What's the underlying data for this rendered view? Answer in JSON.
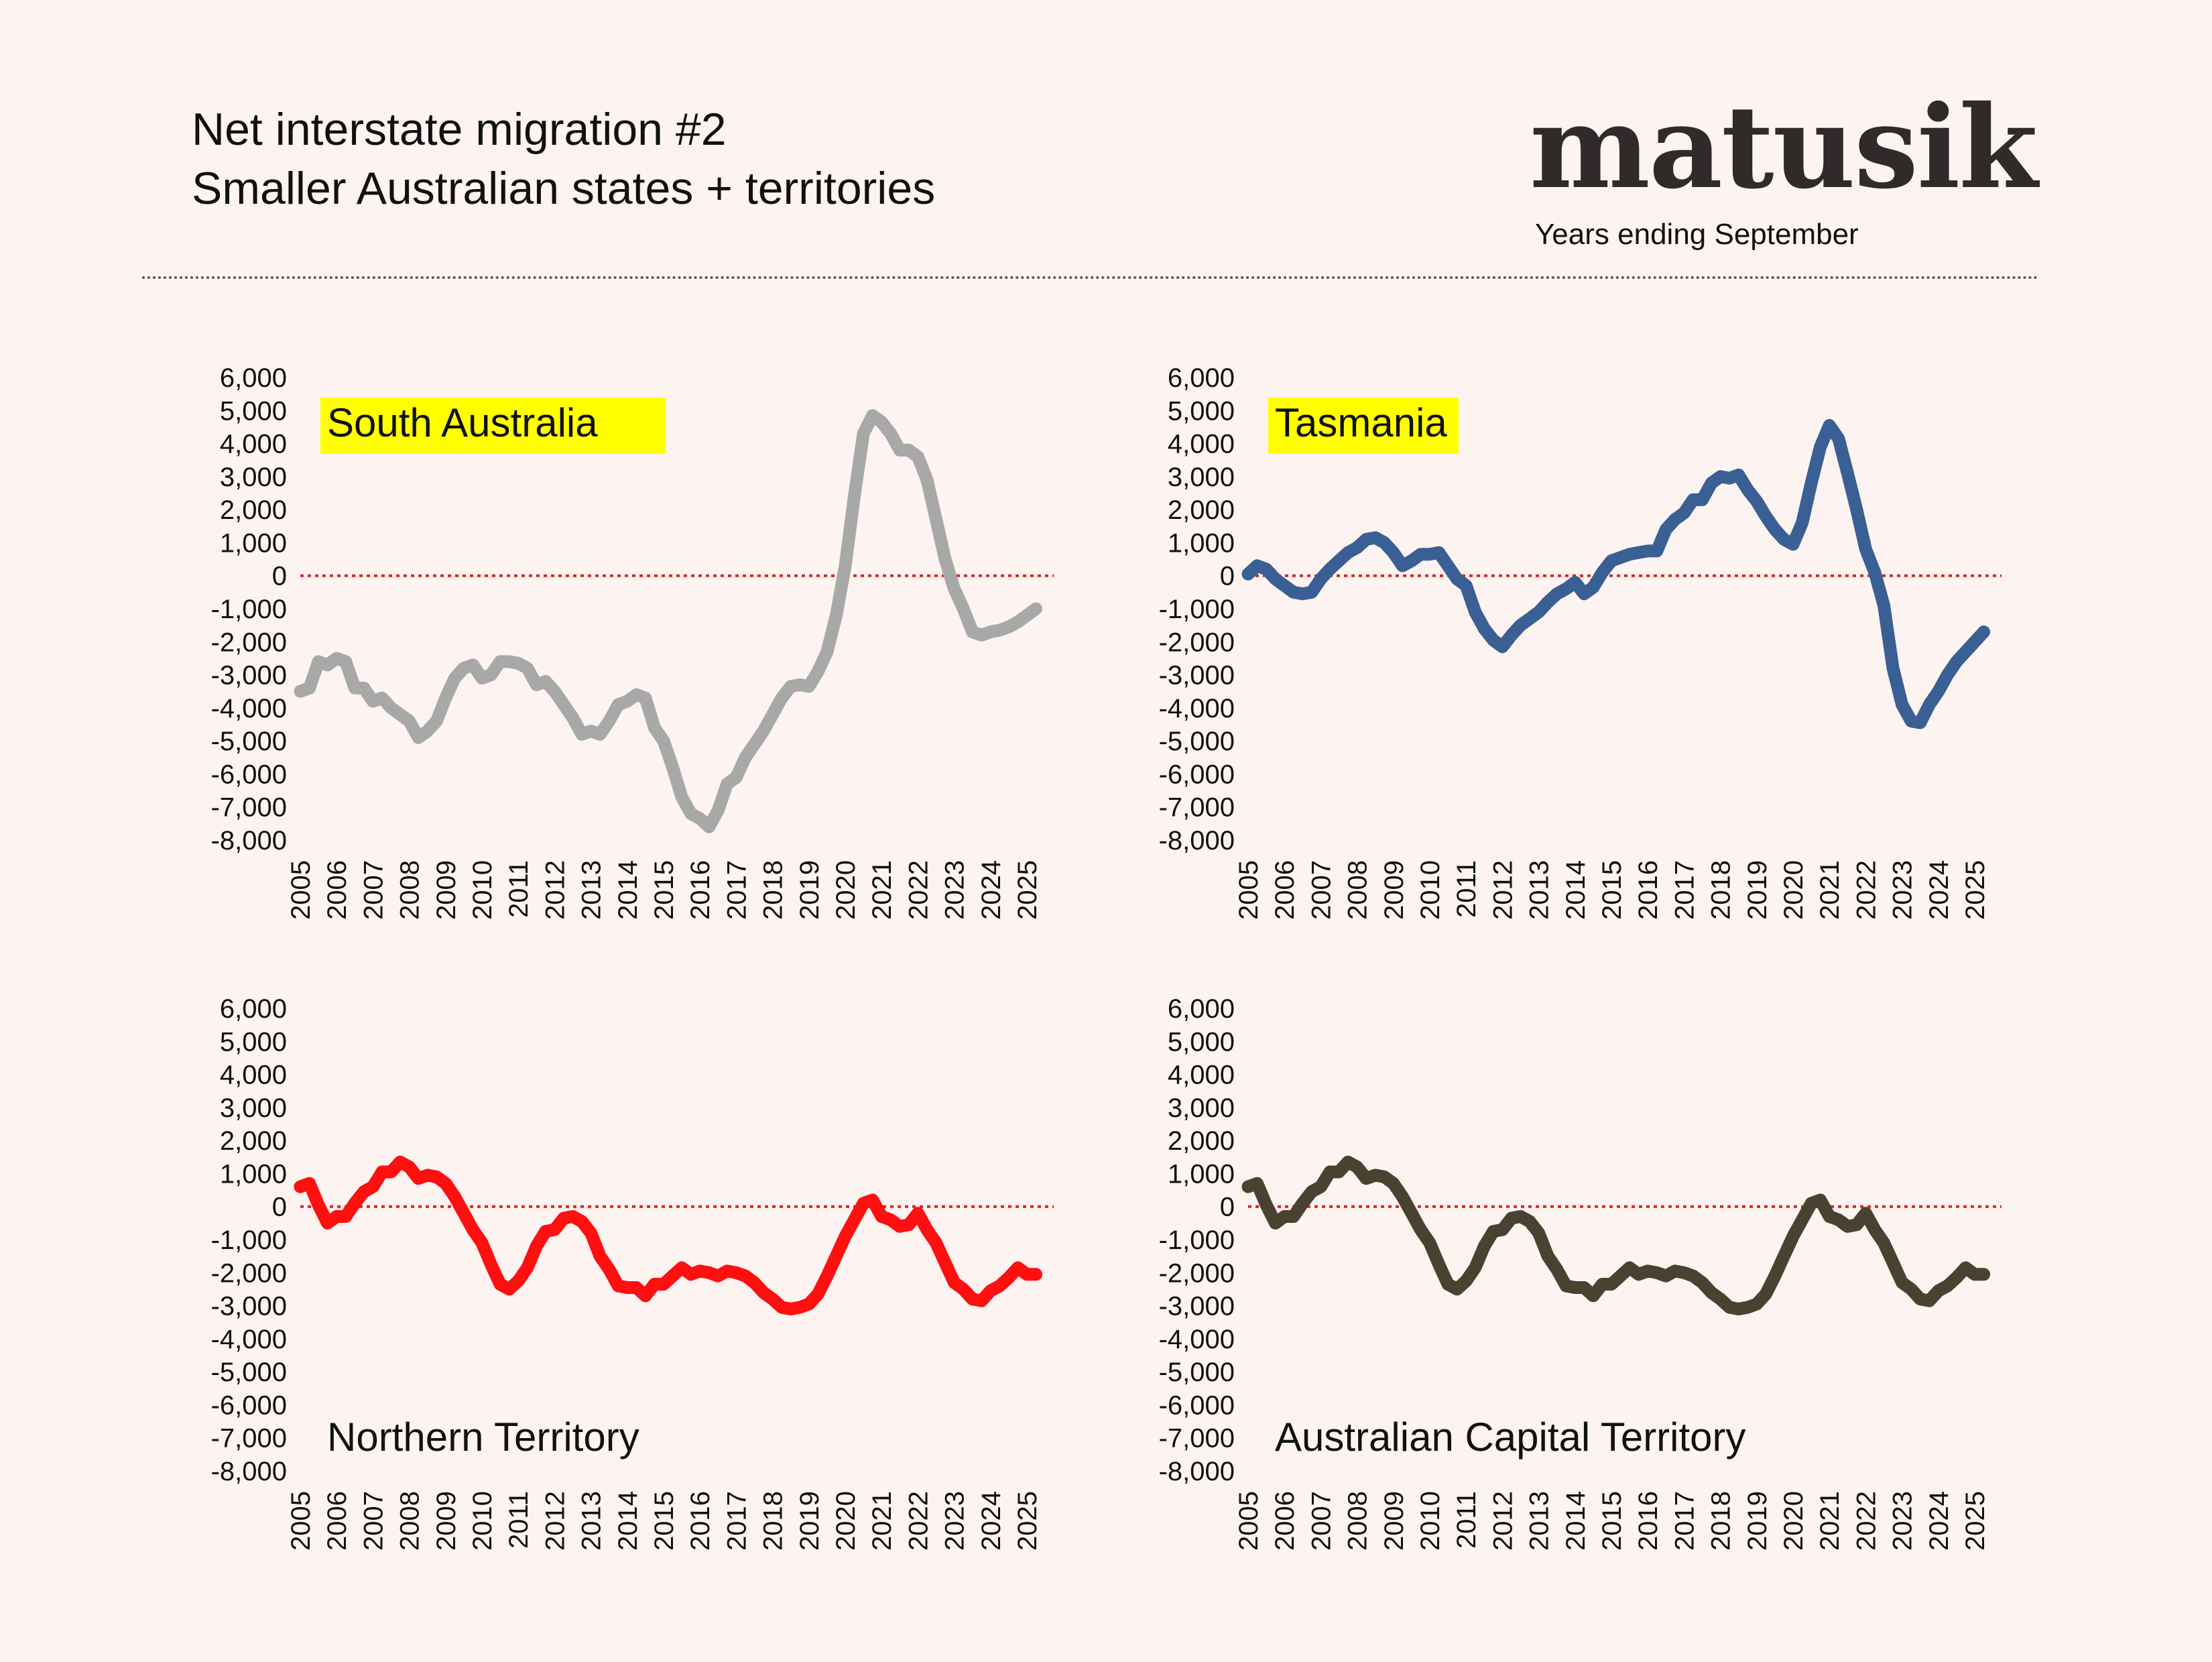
{
  "header": {
    "title": "Net interstate migration #2",
    "subtitle": "Smaller Australian states + territories",
    "logo": "matusik",
    "period_note": "Years ending September"
  },
  "colors": {
    "background": "#fdf3f1",
    "zero_line": "#e02020",
    "highlight": "#ffff00"
  },
  "chart_data": [
    {
      "type": "line",
      "title": "South Australia",
      "title_highlight": true,
      "title_position": "top-left",
      "color": "#a8a8a8",
      "x_start": 2005.0,
      "x_step": 0.25,
      "xlim": [
        2005,
        2025
      ],
      "ylim": [
        -8000,
        6000
      ],
      "y_ticks": [
        6000,
        5000,
        4000,
        3000,
        2000,
        1000,
        0,
        -1000,
        -2000,
        -3000,
        -4000,
        -5000,
        -6000,
        -7000,
        -8000
      ],
      "y_tick_labels": [
        "6,000",
        "5,000",
        "4,000",
        "3,000",
        "2,000",
        "1,000",
        "0",
        "-1,000",
        "-2,000",
        "-3,000",
        "-4,000",
        "-5,000",
        "-6,000",
        "-7,000",
        "-8,000"
      ],
      "x_tick_labels": [
        "2005",
        "2006",
        "2007",
        "2008",
        "2009",
        "2010",
        "2011",
        "2012",
        "2013",
        "2014",
        "2015",
        "2016",
        "2017",
        "2018",
        "2019",
        "2020",
        "2021",
        "2022",
        "2023",
        "2024",
        "2025"
      ],
      "values": [
        -3500,
        -3400,
        -2600,
        -2700,
        -2500,
        -2600,
        -3400,
        -3400,
        -3800,
        -3700,
        -4000,
        -4200,
        -4400,
        -4900,
        -4700,
        -4400,
        -3700,
        -3100,
        -2800,
        -2700,
        -3100,
        -3000,
        -2600,
        -2600,
        -2650,
        -2800,
        -3300,
        -3200,
        -3500,
        -3900,
        -4300,
        -4800,
        -4700,
        -4800,
        -4400,
        -3900,
        -3800,
        -3600,
        -3700,
        -4600,
        -5000,
        -5800,
        -6700,
        -7200,
        -7350,
        -7600,
        -7100,
        -6300,
        -6100,
        -5500,
        -5100,
        -4700,
        -4200,
        -3700,
        -3350,
        -3300,
        -3350,
        -2900,
        -2300,
        -1200,
        300,
        2400,
        4300,
        4850,
        4650,
        4300,
        3800,
        3800,
        3600,
        2900,
        1700,
        500,
        -400,
        -1000,
        -1700,
        -1800,
        -1700,
        -1650,
        -1550,
        -1400,
        -1200,
        -1000
      ]
    },
    {
      "type": "line",
      "title": "Tasmania",
      "title_highlight": true,
      "title_position": "top-left",
      "color": "#3a5f95",
      "x_start": 2005.0,
      "x_step": 0.25,
      "xlim": [
        2005,
        2025
      ],
      "ylim": [
        -8000,
        6000
      ],
      "y_ticks": [
        6000,
        5000,
        4000,
        3000,
        2000,
        1000,
        0,
        -1000,
        -2000,
        -3000,
        -4000,
        -5000,
        -6000,
        -7000,
        -8000
      ],
      "y_tick_labels": [
        "6,000",
        "5,000",
        "4,000",
        "3,000",
        "2,000",
        "1,000",
        "0",
        "-1,000",
        "-2,000",
        "-3,000",
        "-4,000",
        "-5,000",
        "-6,000",
        "-7,000",
        "-8,000"
      ],
      "x_tick_labels": [
        "2005",
        "2006",
        "2007",
        "2008",
        "2009",
        "2010",
        "2011",
        "2012",
        "2013",
        "2014",
        "2015",
        "2016",
        "2017",
        "2018",
        "2019",
        "2020",
        "2021",
        "2022",
        "2023",
        "2024",
        "2025"
      ],
      "values": [
        50,
        300,
        200,
        -100,
        -300,
        -500,
        -550,
        -500,
        -100,
        200,
        450,
        700,
        850,
        1100,
        1150,
        1000,
        700,
        300,
        450,
        650,
        650,
        700,
        300,
        -100,
        -300,
        -1100,
        -1600,
        -1950,
        -2150,
        -1800,
        -1500,
        -1300,
        -1100,
        -800,
        -550,
        -400,
        -200,
        -550,
        -350,
        100,
        450,
        550,
        650,
        700,
        750,
        750,
        1400,
        1700,
        1900,
        2300,
        2300,
        2800,
        3000,
        2950,
        3050,
        2600,
        2250,
        1800,
        1400,
        1100,
        950,
        1600,
        2800,
        3900,
        4550,
        4150,
        3100,
        2000,
        800,
        100,
        -900,
        -2800,
        -3900,
        -4400,
        -4450,
        -3900,
        -3500,
        -3000,
        -2600,
        -2300,
        -2000,
        -1700
      ]
    },
    {
      "type": "line",
      "title": "Northern Territory",
      "title_highlight": false,
      "title_position": "bottom-left",
      "color": "#ff0f0f",
      "x_start": 2005.0,
      "x_step": 0.25,
      "xlim": [
        2005,
        2025
      ],
      "ylim": [
        -8000,
        6000
      ],
      "y_ticks": [
        6000,
        5000,
        4000,
        3000,
        2000,
        1000,
        0,
        -1000,
        -2000,
        -3000,
        -4000,
        -5000,
        -6000,
        -7000,
        -8000
      ],
      "y_tick_labels": [
        "6,000",
        "5,000",
        "4,000",
        "3,000",
        "2,000",
        "1,000",
        "0",
        "-1,000",
        "-2,000",
        "-3,000",
        "-4,000",
        "-5,000",
        "-6,000",
        "-7,000",
        "-8,000"
      ],
      "x_tick_labels": [
        "2005",
        "2006",
        "2007",
        "2008",
        "2009",
        "2010",
        "2011",
        "2012",
        "2013",
        "2014",
        "2015",
        "2016",
        "2017",
        "2018",
        "2019",
        "2020",
        "2021",
        "2022",
        "2023",
        "2024",
        "2025"
      ],
      "values": [
        600,
        700,
        50,
        -500,
        -300,
        -300,
        100,
        450,
        600,
        1050,
        1050,
        1350,
        1200,
        850,
        950,
        900,
        700,
        300,
        -200,
        -700,
        -1100,
        -1750,
        -2350,
        -2500,
        -2250,
        -1850,
        -1200,
        -750,
        -700,
        -350,
        -300,
        -450,
        -800,
        -1500,
        -1900,
        -2400,
        -2450,
        -2450,
        -2700,
        -2350,
        -2350,
        -2100,
        -1850,
        -2050,
        -1950,
        -2000,
        -2100,
        -1950,
        -2000,
        -2100,
        -2300,
        -2600,
        -2800,
        -3050,
        -3100,
        -3050,
        -2950,
        -2650,
        -2100,
        -1500,
        -900,
        -400,
        100,
        200,
        -300,
        -400,
        -600,
        -550,
        -200,
        -700,
        -1100,
        -1700,
        -2300,
        -2500,
        -2800,
        -2850,
        -2550,
        -2400,
        -2150,
        -1850,
        -2050,
        -2050
      ]
    },
    {
      "type": "line",
      "title": "Australian Capital Territory",
      "title_highlight": false,
      "title_position": "bottom-left",
      "color": "#4a4230",
      "x_start": 2005.0,
      "x_step": 0.25,
      "xlim": [
        2005,
        2025
      ],
      "ylim": [
        -8000,
        6000
      ],
      "y_ticks": [
        6000,
        5000,
        4000,
        3000,
        2000,
        1000,
        0,
        -1000,
        -2000,
        -3000,
        -4000,
        -5000,
        -6000,
        -7000,
        -8000
      ],
      "y_tick_labels": [
        "6,000",
        "5,000",
        "4,000",
        "3,000",
        "2,000",
        "1,000",
        "0",
        "-1,000",
        "-2,000",
        "-3,000",
        "-4,000",
        "-5,000",
        "-6,000",
        "-7,000",
        "-8,000"
      ],
      "x_tick_labels": [
        "2005",
        "2006",
        "2007",
        "2008",
        "2009",
        "2010",
        "2011",
        "2012",
        "2013",
        "2014",
        "2015",
        "2016",
        "2017",
        "2018",
        "2019",
        "2020",
        "2021",
        "2022",
        "2023",
        "2024",
        "2025"
      ],
      "values": [
        600,
        700,
        50,
        -500,
        -300,
        -300,
        100,
        450,
        600,
        1050,
        1050,
        1350,
        1200,
        850,
        950,
        900,
        700,
        300,
        -200,
        -700,
        -1100,
        -1750,
        -2350,
        -2500,
        -2250,
        -1850,
        -1200,
        -750,
        -700,
        -350,
        -300,
        -450,
        -800,
        -1500,
        -1900,
        -2400,
        -2450,
        -2450,
        -2700,
        -2350,
        -2350,
        -2100,
        -1850,
        -2050,
        -1950,
        -2000,
        -2100,
        -1950,
        -2000,
        -2100,
        -2300,
        -2600,
        -2800,
        -3050,
        -3100,
        -3050,
        -2950,
        -2650,
        -2100,
        -1500,
        -900,
        -400,
        100,
        200,
        -300,
        -400,
        -600,
        -550,
        -200,
        -700,
        -1100,
        -1700,
        -2300,
        -2500,
        -2800,
        -2850,
        -2550,
        -2400,
        -2150,
        -1850,
        -2050,
        -2050
      ]
    }
  ]
}
